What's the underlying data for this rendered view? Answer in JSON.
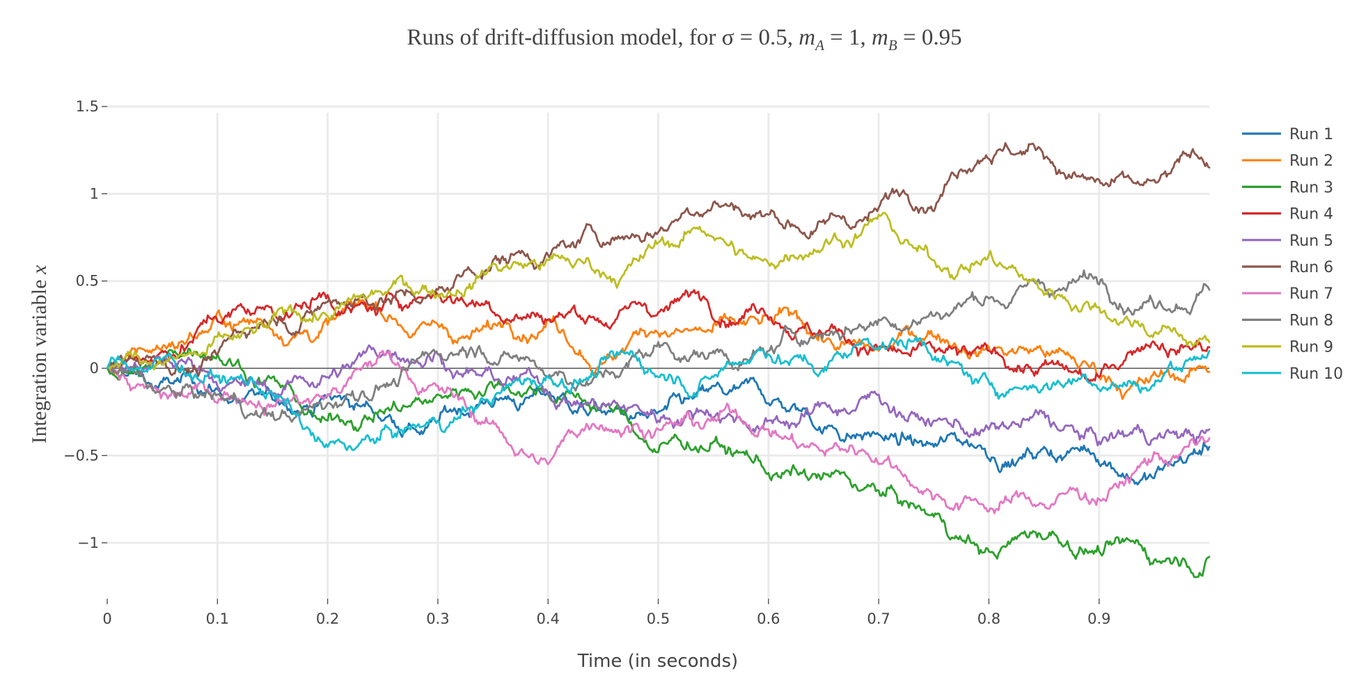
{
  "chart_data": {
    "type": "line",
    "title": {
      "prefix": "Runs of drift-diffusion model, for σ = 0.5, ",
      "m": "m",
      "sub_a": "A",
      "eq_a": " = 1, ",
      "sub_b": "B",
      "eq_b": " = 0.95"
    },
    "xlabel": "Time (in seconds)",
    "ylabel": {
      "text": "Integration variable ",
      "var": "x"
    },
    "xlim": [
      0,
      1.0
    ],
    "ylim": [
      -1.32,
      1.52
    ],
    "x_ticks": [
      0,
      0.1,
      0.2,
      0.3,
      0.4,
      0.5,
      0.6,
      0.7,
      0.8,
      0.9
    ],
    "x_tick_labels": [
      "0",
      "0.1",
      "0.2",
      "0.3",
      "0.4",
      "0.5",
      "0.6",
      "0.7",
      "0.8",
      "0.9"
    ],
    "y_ticks": [
      -1,
      -0.5,
      0,
      0.5,
      1,
      1.5
    ],
    "y_tick_labels": [
      "−1",
      "−0.5",
      "0",
      "0.5",
      "1",
      "1.5"
    ],
    "grid": true,
    "legend_position": "right",
    "series": [
      {
        "name": "Run 1",
        "color": "#1f77b4",
        "x": [
          0,
          0.05,
          0.1,
          0.15,
          0.2,
          0.25,
          0.3,
          0.35,
          0.4,
          0.45,
          0.5,
          0.55,
          0.6,
          0.65,
          0.7,
          0.75,
          0.8,
          0.85,
          0.9,
          0.95,
          1.0
        ],
        "values": [
          0,
          -0.08,
          -0.12,
          -0.18,
          -0.15,
          -0.3,
          -0.3,
          -0.22,
          -0.15,
          -0.25,
          -0.25,
          -0.1,
          -0.2,
          -0.35,
          -0.38,
          -0.45,
          -0.52,
          -0.45,
          -0.55,
          -0.63,
          -0.45
        ]
      },
      {
        "name": "Run 2",
        "color": "#ff7f0e",
        "x": [
          0,
          0.05,
          0.1,
          0.15,
          0.2,
          0.25,
          0.3,
          0.35,
          0.4,
          0.45,
          0.5,
          0.55,
          0.6,
          0.65,
          0.7,
          0.75,
          0.8,
          0.85,
          0.9,
          0.95,
          1.0
        ],
        "values": [
          0,
          0.12,
          0.32,
          0.22,
          0.25,
          0.3,
          0.25,
          0.25,
          0.28,
          0.03,
          0.2,
          0.25,
          0.28,
          0.15,
          0.1,
          0.18,
          0.12,
          0.08,
          -0.05,
          -0.02,
          -0.02
        ]
      },
      {
        "name": "Run 3",
        "color": "#2ca02c",
        "x": [
          0,
          0.05,
          0.1,
          0.15,
          0.2,
          0.25,
          0.3,
          0.35,
          0.4,
          0.45,
          0.5,
          0.55,
          0.6,
          0.65,
          0.7,
          0.75,
          0.8,
          0.85,
          0.9,
          0.95,
          1.0
        ],
        "values": [
          0,
          0.05,
          0.08,
          -0.05,
          -0.3,
          -0.25,
          -0.15,
          -0.1,
          -0.15,
          -0.2,
          -0.48,
          -0.42,
          -0.6,
          -0.6,
          -0.7,
          -0.85,
          -1.05,
          -0.98,
          -1.05,
          -1.1,
          -1.08
        ]
      },
      {
        "name": "Run 4",
        "color": "#d62728",
        "x": [
          0,
          0.05,
          0.1,
          0.15,
          0.2,
          0.25,
          0.3,
          0.35,
          0.4,
          0.45,
          0.5,
          0.55,
          0.6,
          0.65,
          0.7,
          0.75,
          0.8,
          0.85,
          0.9,
          0.95,
          1.0
        ],
        "values": [
          0,
          0.1,
          0.27,
          0.32,
          0.42,
          0.35,
          0.42,
          0.32,
          0.28,
          0.25,
          0.32,
          0.28,
          0.28,
          0.2,
          0.12,
          0.12,
          0.1,
          0.02,
          -0.05,
          0.15,
          0.12
        ]
      },
      {
        "name": "Run 5",
        "color": "#9467bd",
        "x": [
          0,
          0.05,
          0.1,
          0.15,
          0.2,
          0.25,
          0.3,
          0.35,
          0.4,
          0.45,
          0.5,
          0.55,
          0.6,
          0.65,
          0.7,
          0.75,
          0.8,
          0.85,
          0.9,
          0.95,
          1.0
        ],
        "values": [
          0,
          0.03,
          -0.1,
          -0.15,
          -0.05,
          0.08,
          0.08,
          -0.05,
          -0.15,
          -0.2,
          -0.3,
          -0.28,
          -0.3,
          -0.2,
          -0.15,
          -0.3,
          -0.35,
          -0.25,
          -0.42,
          -0.4,
          -0.35
        ]
      },
      {
        "name": "Run 6",
        "color": "#8c564b",
        "x": [
          0,
          0.05,
          0.1,
          0.15,
          0.2,
          0.25,
          0.3,
          0.35,
          0.4,
          0.45,
          0.5,
          0.55,
          0.6,
          0.65,
          0.7,
          0.75,
          0.8,
          0.85,
          0.9,
          0.95,
          1.0
        ],
        "values": [
          0,
          0.05,
          0.08,
          0.3,
          0.38,
          0.38,
          0.45,
          0.62,
          0.65,
          0.72,
          0.78,
          0.95,
          0.88,
          0.85,
          0.92,
          0.9,
          1.2,
          1.2,
          1.08,
          1.08,
          1.15
        ]
      },
      {
        "name": "Run 7",
        "color": "#e377c2",
        "x": [
          0,
          0.05,
          0.1,
          0.15,
          0.2,
          0.25,
          0.3,
          0.35,
          0.4,
          0.45,
          0.5,
          0.55,
          0.6,
          0.65,
          0.7,
          0.75,
          0.8,
          0.85,
          0.9,
          0.95,
          1.0
        ],
        "values": [
          0,
          -0.15,
          -0.2,
          -0.22,
          -0.15,
          0.1,
          -0.1,
          -0.3,
          -0.55,
          -0.35,
          -0.35,
          -0.3,
          -0.35,
          -0.48,
          -0.55,
          -0.75,
          -0.82,
          -0.78,
          -0.75,
          -0.48,
          -0.4
        ]
      },
      {
        "name": "Run 8",
        "color": "#7f7f7f",
        "x": [
          0,
          0.05,
          0.1,
          0.15,
          0.2,
          0.25,
          0.3,
          0.35,
          0.4,
          0.45,
          0.5,
          0.55,
          0.6,
          0.65,
          0.7,
          0.75,
          0.8,
          0.85,
          0.9,
          0.95,
          1.0
        ],
        "values": [
          0,
          -0.12,
          -0.15,
          -0.25,
          -0.2,
          -0.1,
          0.08,
          0.02,
          -0.05,
          -0.05,
          0.15,
          0.1,
          0.1,
          0.2,
          0.28,
          0.3,
          0.4,
          0.48,
          0.48,
          0.35,
          0.45
        ]
      },
      {
        "name": "Run 9",
        "color": "#bcbd22",
        "x": [
          0,
          0.05,
          0.1,
          0.15,
          0.2,
          0.25,
          0.3,
          0.35,
          0.4,
          0.45,
          0.5,
          0.55,
          0.6,
          0.65,
          0.7,
          0.75,
          0.8,
          0.85,
          0.9,
          0.95,
          1.0
        ],
        "values": [
          0,
          0.02,
          0.18,
          0.28,
          0.3,
          0.42,
          0.42,
          0.6,
          0.62,
          0.55,
          0.72,
          0.75,
          0.6,
          0.7,
          0.88,
          0.62,
          0.65,
          0.42,
          0.35,
          0.2,
          0.15
        ]
      },
      {
        "name": "Run 10",
        "color": "#17becf",
        "x": [
          0,
          0.05,
          0.1,
          0.15,
          0.2,
          0.25,
          0.3,
          0.35,
          0.4,
          0.45,
          0.5,
          0.55,
          0.6,
          0.65,
          0.7,
          0.75,
          0.8,
          0.85,
          0.9,
          0.95,
          1.0
        ],
        "values": [
          0,
          0.05,
          -0.05,
          -0.15,
          -0.45,
          -0.35,
          -0.3,
          -0.18,
          -0.05,
          0.05,
          -0.05,
          -0.05,
          0.08,
          -0.02,
          0.12,
          0.05,
          -0.08,
          -0.1,
          -0.12,
          -0.1,
          0.1
        ]
      }
    ]
  }
}
